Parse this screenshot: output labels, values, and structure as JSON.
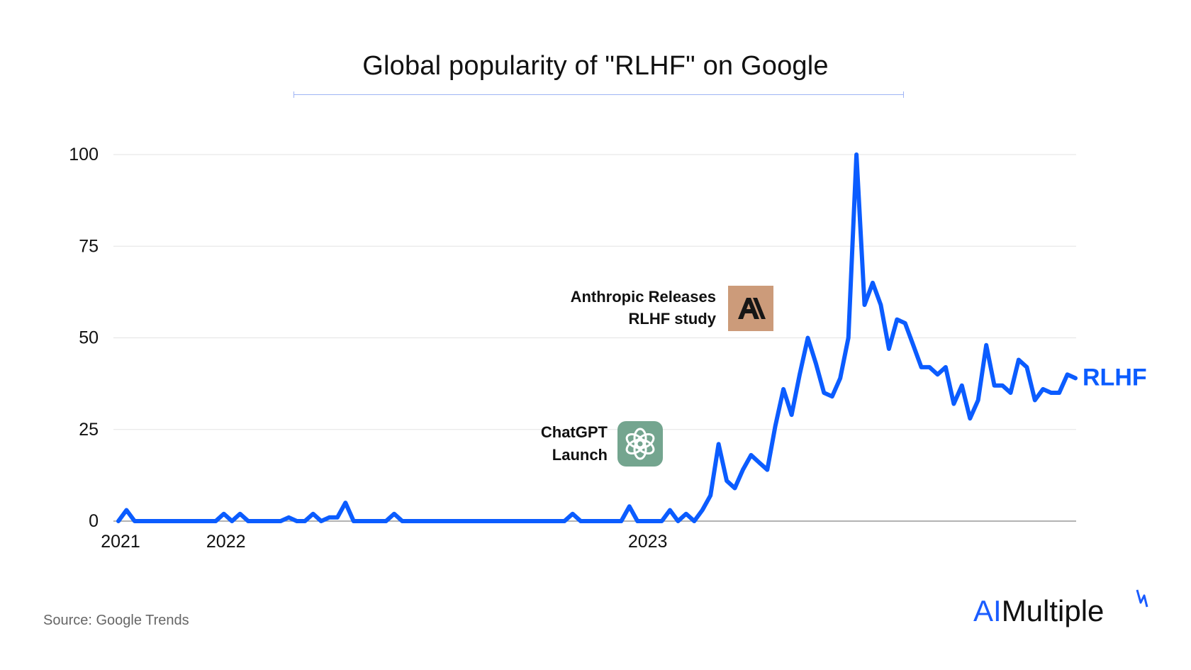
{
  "title": "Global popularity of \"RLHF\" on Google",
  "source": "Source: Google Trends",
  "brand": {
    "ai": "AI",
    "rest": "Multiple"
  },
  "colors": {
    "line": "#0b5cff",
    "grid": "#e3e3e3",
    "anthropic_bg": "#cc9b7a",
    "openai_bg": "#74a58f"
  },
  "chart_data": {
    "type": "line",
    "title": "Global popularity of \"RLHF\" on Google",
    "xlabel": "",
    "ylabel": "",
    "ylim": [
      0,
      100
    ],
    "yticks": [
      0,
      25,
      50,
      75,
      100
    ],
    "grid": true,
    "x_tick_labels": [
      {
        "label": "2021",
        "index": 0
      },
      {
        "label": "2022",
        "index": 13
      },
      {
        "label": "2023",
        "index": 65
      }
    ],
    "series": [
      {
        "name": "RLHF",
        "values": [
          0,
          3,
          0,
          0,
          0,
          0,
          0,
          0,
          0,
          0,
          0,
          0,
          0,
          2,
          0,
          2,
          0,
          0,
          0,
          0,
          0,
          1,
          0,
          0,
          2,
          0,
          1,
          1,
          5,
          0,
          0,
          0,
          0,
          0,
          2,
          0,
          0,
          0,
          0,
          0,
          0,
          0,
          0,
          0,
          0,
          0,
          0,
          0,
          0,
          0,
          0,
          0,
          0,
          0,
          0,
          0,
          2,
          0,
          0,
          0,
          0,
          0,
          0,
          4,
          0,
          0,
          0,
          0,
          3,
          0,
          2,
          0,
          3,
          7,
          21,
          11,
          9,
          14,
          18,
          16,
          14,
          26,
          36,
          29,
          40,
          50,
          43,
          35,
          34,
          39,
          50,
          100,
          59,
          65,
          59,
          47,
          55,
          54,
          48,
          42,
          42,
          40,
          42,
          32,
          37,
          28,
          33,
          48,
          37,
          37,
          35,
          44,
          42,
          33,
          36,
          35,
          35,
          40,
          39
        ]
      }
    ],
    "annotations": [
      {
        "text_line1": "ChatGPT",
        "text_line2": "Launch",
        "icon": "openai-logo-icon",
        "index": 57
      },
      {
        "text_line1": "Anthropic Releases",
        "text_line2": "RLHF study",
        "icon": "anthropic-logo-icon",
        "index": 70
      }
    ]
  }
}
